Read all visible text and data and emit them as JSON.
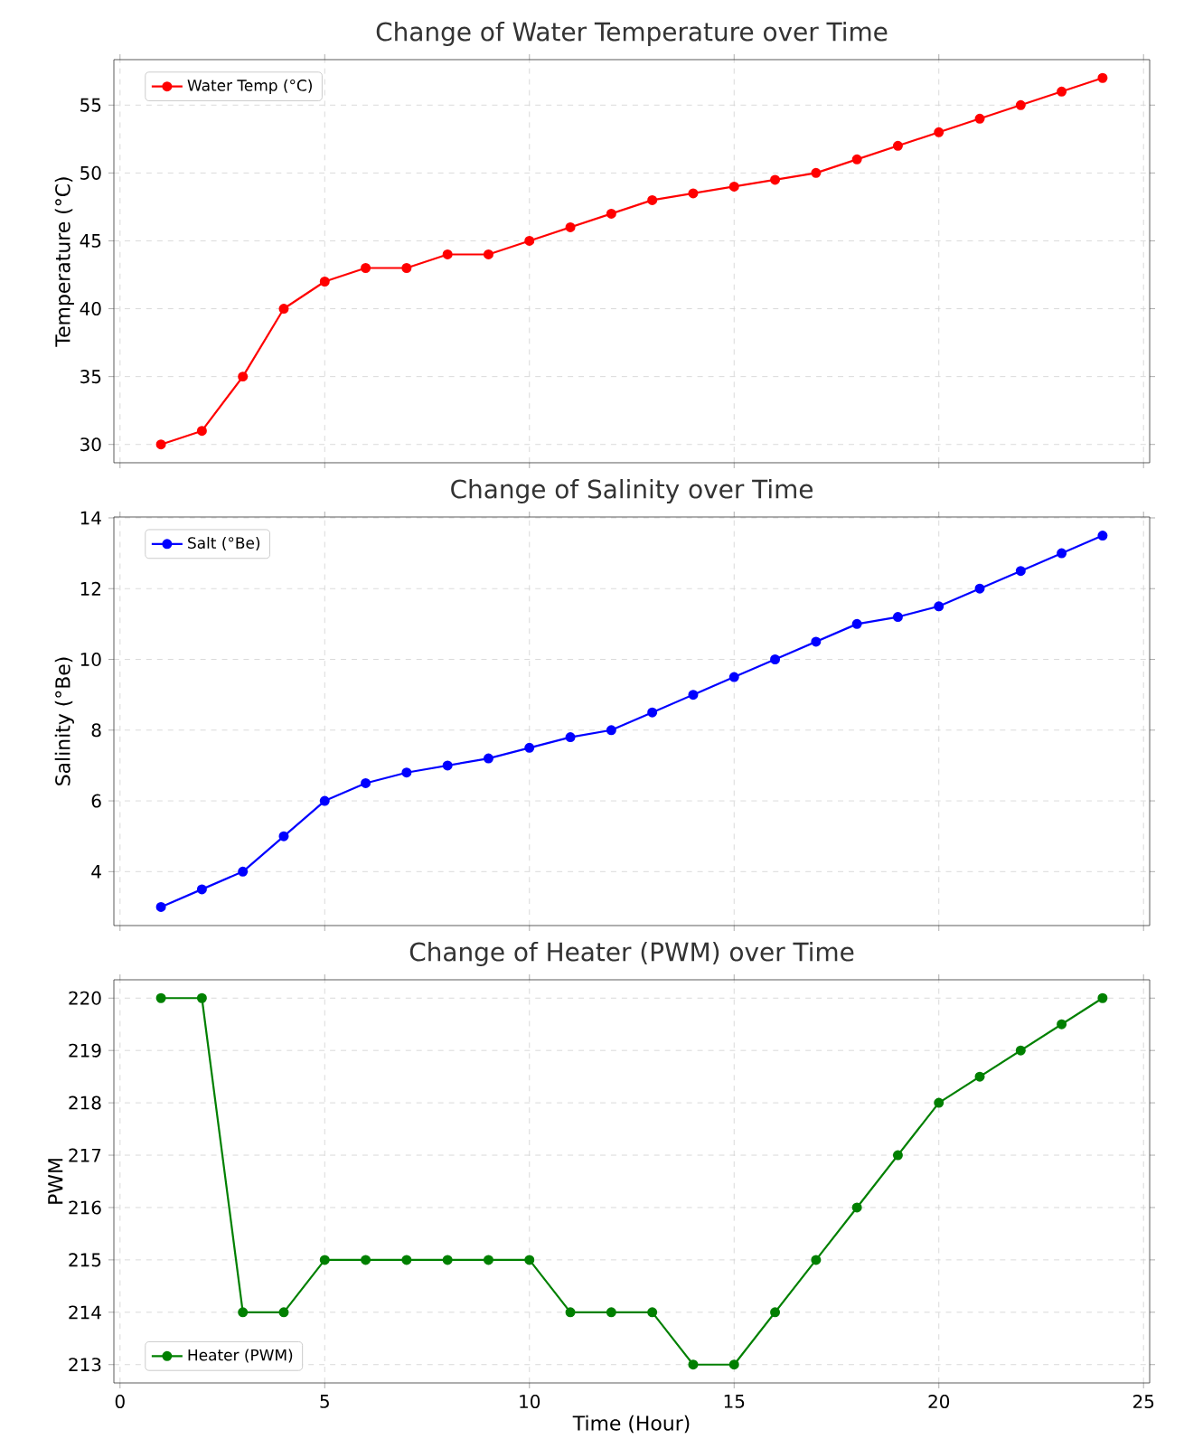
{
  "chart_data": [
    {
      "type": "line",
      "title": "Change of Water Temperature over Time",
      "ylabel": "Temperature (°C)",
      "x": [
        1,
        2,
        3,
        4,
        5,
        6,
        7,
        8,
        9,
        10,
        11,
        12,
        13,
        14,
        15,
        16,
        17,
        18,
        19,
        20,
        21,
        22,
        23,
        24
      ],
      "series": [
        {
          "name": "Water Temp (°C)",
          "color": "#ff0000",
          "values": [
            30,
            31,
            35,
            40,
            42,
            43,
            43,
            44,
            44,
            45,
            46,
            47,
            48,
            48.5,
            49,
            49.5,
            50,
            51,
            52,
            53,
            54,
            55,
            56,
            57
          ]
        }
      ],
      "xlim": [
        -0.15,
        25.15
      ],
      "xticks": [
        0,
        5,
        10,
        15,
        20,
        25
      ],
      "ylim": [
        28.65,
        58.35
      ],
      "yticks": [
        30,
        35,
        40,
        45,
        50,
        55
      ],
      "tick_labels": "y",
      "grid": true,
      "legend": "top left",
      "marker": "circle",
      "line_style": "solid"
    },
    {
      "type": "line",
      "title": "Change of Salinity over Time",
      "ylabel": "Salinity (°Be)",
      "x": [
        1,
        2,
        3,
        4,
        5,
        6,
        7,
        8,
        9,
        10,
        11,
        12,
        13,
        14,
        15,
        16,
        17,
        18,
        19,
        20,
        21,
        22,
        23,
        24
      ],
      "series": [
        {
          "name": "Salt (°Be)",
          "color": "#0000ff",
          "values": [
            3,
            3.5,
            4,
            5,
            6,
            6.5,
            6.8,
            7,
            7.2,
            7.5,
            7.8,
            8,
            8.5,
            9,
            9.5,
            10,
            10.5,
            11,
            11.2,
            11.5,
            12,
            12.5,
            13,
            13.5
          ]
        }
      ],
      "xlim": [
        -0.15,
        25.15
      ],
      "xticks": [
        0,
        5,
        10,
        15,
        20,
        25
      ],
      "ylim": [
        2.475,
        14.025
      ],
      "yticks": [
        4,
        6,
        8,
        10,
        12,
        14
      ],
      "tick_labels": "y",
      "grid": true,
      "legend": "top left",
      "marker": "circle",
      "line_style": "solid"
    },
    {
      "type": "line",
      "title": "Change of Heater (PWM) over Time",
      "xlabel": "Time (Hour)",
      "ylabel": "PWM",
      "x": [
        1,
        2,
        3,
        4,
        5,
        6,
        7,
        8,
        9,
        10,
        11,
        12,
        13,
        14,
        15,
        16,
        17,
        18,
        19,
        20,
        21,
        22,
        23,
        24
      ],
      "series": [
        {
          "name": "Heater (PWM)",
          "color": "#008000",
          "values": [
            220,
            220,
            214,
            214,
            215,
            215,
            215,
            215,
            215,
            215,
            214,
            214,
            214,
            213,
            213,
            214,
            215,
            216,
            217,
            218,
            218.5,
            219,
            219.5,
            220
          ]
        }
      ],
      "xlim": [
        -0.15,
        25.15
      ],
      "xticks": [
        0,
        5,
        10,
        15,
        20,
        25
      ],
      "ylim": [
        212.65,
        220.35
      ],
      "yticks": [
        213,
        214,
        215,
        216,
        217,
        218,
        219,
        220
      ],
      "grid": true,
      "legend": "bottom left",
      "marker": "circle",
      "line_style": "solid"
    }
  ]
}
